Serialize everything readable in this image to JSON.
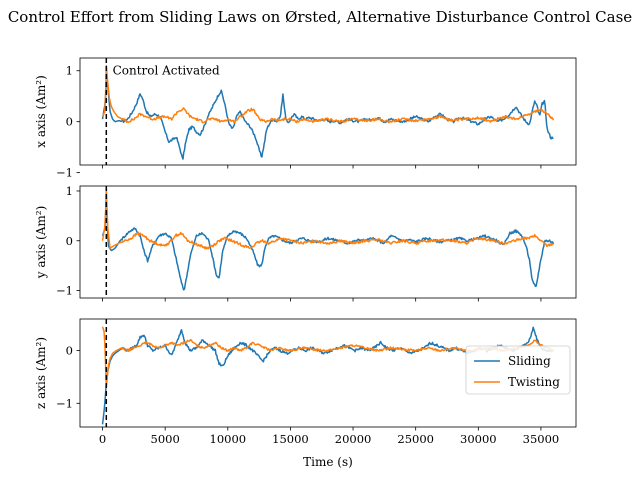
{
  "figure": {
    "title": "Control Effort from Sliding Laws on Ørsted, Alternative Disturbance Control Case",
    "xlabel": "Time (s)",
    "annotation": "Control Activated"
  },
  "chart_data": [
    {
      "type": "line",
      "title": "Control Effort from Sliding Laws on Ørsted, Alternative Disturbance Control Case",
      "xlabel": "",
      "ylabel": "x axis (Am²)",
      "xlim": [
        -1800,
        37800
      ],
      "ylim": [
        -0.85,
        1.25
      ],
      "yticks": [
        -1,
        0,
        1
      ],
      "xticks": [
        0,
        5000,
        10000,
        15000,
        20000,
        25000,
        30000,
        35000
      ],
      "grid": false,
      "vline": {
        "x": 300,
        "style": "dashed",
        "color": "#000000"
      },
      "annotation": {
        "text": "Control Activated",
        "x": 800,
        "y": 1.0
      },
      "series": [
        {
          "name": "Sliding",
          "color": "#1f77b4",
          "x": [
            0,
            200,
            350,
            450,
            600,
            800,
            1000,
            1300,
            1600,
            2000,
            2400,
            2700,
            3000,
            3200,
            3500,
            3800,
            4200,
            4600,
            5000,
            5300,
            5600,
            5900,
            6200,
            6400,
            6600,
            6900,
            7200,
            7500,
            7800,
            8100,
            8400,
            8700,
            9000,
            9300,
            9500,
            9800,
            10100,
            10400,
            10700,
            11000,
            11400,
            11800,
            12200,
            12500,
            12700,
            12900,
            13100,
            13300,
            13600,
            13900,
            14200,
            14400,
            14600,
            14800,
            15000,
            15300,
            15600,
            15900,
            16200,
            16500,
            16900,
            17300,
            17700,
            18100,
            18500,
            19000,
            19500,
            20000,
            20500,
            21000,
            21500,
            22000,
            22500,
            23000,
            23500,
            24000,
            24500,
            25000,
            25500,
            26000,
            26500,
            27000,
            27500,
            28000,
            28500,
            29000,
            29500,
            30000,
            30500,
            31000,
            31500,
            32000,
            32500,
            33000,
            33500,
            33800,
            34100,
            34300,
            34500,
            34700,
            34900,
            35100,
            35300,
            35500,
            35800,
            36000
          ],
          "values": [
            0.05,
            0.35,
            0.9,
            0.6,
            0.2,
            0.05,
            0.0,
            0.02,
            0.0,
            0.05,
            0.2,
            0.35,
            0.55,
            0.45,
            0.2,
            0.1,
            0.15,
            0.1,
            -0.2,
            -0.4,
            -0.35,
            -0.3,
            -0.55,
            -0.75,
            -0.45,
            -0.15,
            -0.1,
            -0.2,
            -0.25,
            -0.1,
            0.1,
            0.25,
            0.4,
            0.55,
            0.6,
            0.3,
            -0.05,
            -0.15,
            0.1,
            0.2,
            0.0,
            -0.1,
            -0.3,
            -0.55,
            -0.7,
            -0.45,
            -0.15,
            -0.05,
            0.05,
            0.0,
            0.1,
            0.55,
            0.1,
            -0.05,
            0.05,
            0.15,
            0.05,
            0.1,
            0.05,
            0.08,
            0.05,
            0.02,
            0.05,
            0.0,
            0.02,
            -0.02,
            0.05,
            0.02,
            0.0,
            0.05,
            0.03,
            0.08,
            0.0,
            0.05,
            0.02,
            0.0,
            0.05,
            0.1,
            0.05,
            0.0,
            0.1,
            0.15,
            0.05,
            0.0,
            0.08,
            0.05,
            0.0,
            -0.05,
            0.05,
            0.1,
            0.0,
            0.05,
            0.15,
            0.3,
            0.1,
            0.0,
            -0.05,
            0.2,
            0.4,
            0.3,
            0.1,
            0.35,
            0.4,
            -0.15,
            -0.32,
            -0.3
          ],
          "noise": 0.025
        },
        {
          "name": "Twisting",
          "color": "#ff7f0e",
          "x": [
            0,
            200,
            300,
            400,
            550,
            700,
            900,
            1200,
            1600,
            2000,
            2500,
            3000,
            3500,
            4000,
            4500,
            5000,
            5500,
            6000,
            6500,
            7000,
            7500,
            8000,
            8500,
            9000,
            9500,
            10000,
            10500,
            11000,
            11500,
            12000,
            12500,
            13000,
            13500,
            14000,
            14500,
            15000,
            15500,
            16000,
            16500,
            17000,
            17500,
            18000,
            19000,
            20000,
            21000,
            22000,
            23000,
            24000,
            25000,
            26000,
            27000,
            28000,
            29000,
            30000,
            31000,
            32000,
            33000,
            34000,
            34500,
            35000,
            35500,
            36000
          ],
          "values": [
            0.1,
            0.2,
            1.1,
            0.8,
            0.45,
            0.3,
            0.2,
            0.1,
            0.05,
            0.0,
            0.05,
            0.15,
            0.1,
            0.05,
            0.08,
            0.1,
            0.05,
            0.2,
            0.25,
            0.1,
            0.05,
            0.0,
            0.05,
            0.05,
            0.0,
            0.05,
            0.0,
            0.1,
            0.2,
            0.25,
            0.05,
            0.0,
            0.05,
            0.02,
            0.05,
            0.05,
            0.0,
            0.05,
            0.02,
            0.0,
            0.03,
            0.05,
            0.0,
            0.05,
            0.02,
            0.05,
            0.0,
            0.05,
            0.02,
            0.05,
            0.1,
            0.02,
            0.05,
            0.08,
            0.0,
            0.1,
            0.05,
            0.15,
            0.2,
            0.25,
            0.15,
            0.05
          ],
          "noise": 0.025
        }
      ]
    },
    {
      "type": "line",
      "xlabel": "",
      "ylabel": "y axis (Am²)",
      "xlim": [
        -1800,
        37800
      ],
      "ylim": [
        -1.15,
        1.1
      ],
      "yticks": [
        -1,
        0,
        1
      ],
      "xticks": [
        0,
        5000,
        10000,
        15000,
        20000,
        25000,
        30000,
        35000
      ],
      "grid": false,
      "vline": {
        "x": 300,
        "style": "dashed",
        "color": "#000000"
      },
      "series": [
        {
          "name": "Sliding",
          "color": "#1f77b4",
          "x": [
            0,
            200,
            300,
            450,
            700,
            1000,
            1400,
            1800,
            2200,
            2600,
            3000,
            3300,
            3600,
            4000,
            4500,
            5000,
            5500,
            6000,
            6300,
            6500,
            6700,
            7000,
            7500,
            8000,
            8500,
            8800,
            9100,
            9300,
            9600,
            10000,
            10500,
            11000,
            11500,
            12000,
            12400,
            12700,
            13000,
            13300,
            13700,
            14100,
            14500,
            15000,
            15500,
            16000,
            16500,
            17000,
            17500,
            18000,
            18500,
            19000,
            19500,
            20000,
            20500,
            21000,
            21500,
            22000,
            22500,
            23000,
            23500,
            24000,
            24500,
            25000,
            25500,
            26000,
            26500,
            27000,
            27500,
            28000,
            28500,
            29000,
            29500,
            30000,
            30500,
            31000,
            31500,
            32000,
            32500,
            33000,
            33500,
            33800,
            34100,
            34300,
            34600,
            34900,
            35300,
            35700,
            36000
          ],
          "values": [
            0.1,
            0.25,
            0.9,
            -0.1,
            -0.2,
            -0.15,
            0.0,
            0.1,
            0.2,
            0.25,
            0.1,
            -0.2,
            -0.4,
            -0.1,
            0.1,
            0.15,
            0.05,
            -0.5,
            -0.85,
            -1.0,
            -0.75,
            -0.3,
            0.1,
            0.15,
            0.0,
            -0.35,
            -0.7,
            -0.75,
            -0.2,
            0.1,
            0.2,
            0.15,
            0.05,
            -0.2,
            -0.5,
            -0.5,
            -0.1,
            0.05,
            0.1,
            0.05,
            0.0,
            -0.05,
            0.02,
            0.05,
            0.0,
            -0.02,
            0.0,
            0.05,
            0.02,
            0.0,
            -0.05,
            -0.02,
            0.02,
            0.0,
            0.05,
            0.0,
            -0.05,
            0.1,
            0.05,
            0.0,
            0.02,
            -0.02,
            0.02,
            0.05,
            0.0,
            -0.02,
            0.0,
            0.02,
            0.05,
            0.0,
            0.02,
            0.05,
            0.1,
            0.05,
            0.0,
            -0.1,
            0.15,
            0.2,
            0.1,
            -0.1,
            -0.4,
            -0.8,
            -0.95,
            -0.5,
            0.0,
            0.0,
            -0.05
          ],
          "noise": 0.025
        },
        {
          "name": "Twisting",
          "color": "#ff7f0e",
          "x": [
            0,
            200,
            300,
            400,
            600,
            900,
            1300,
            1800,
            2300,
            2800,
            3300,
            3800,
            4300,
            4800,
            5300,
            5800,
            6300,
            6800,
            7300,
            7800,
            8300,
            8800,
            9300,
            9800,
            10300,
            10800,
            11300,
            11800,
            12300,
            12800,
            13300,
            13800,
            14300,
            15000,
            16000,
            17000,
            18000,
            19000,
            20000,
            21000,
            22000,
            23000,
            24000,
            25000,
            26000,
            27000,
            28000,
            29000,
            30000,
            31000,
            32000,
            33000,
            33500,
            34000,
            34500,
            35000,
            35500,
            36000
          ],
          "values": [
            0.0,
            0.3,
            1.05,
            0.3,
            -0.15,
            -0.1,
            -0.05,
            0.0,
            0.05,
            0.15,
            0.1,
            0.0,
            -0.05,
            -0.1,
            -0.05,
            0.1,
            0.15,
            0.0,
            -0.05,
            -0.1,
            -0.15,
            -0.1,
            0.0,
            0.05,
            0.0,
            -0.05,
            -0.1,
            -0.15,
            -0.05,
            0.0,
            -0.05,
            0.0,
            0.05,
            0.0,
            -0.05,
            0.0,
            -0.05,
            0.0,
            -0.05,
            0.0,
            0.02,
            -0.05,
            0.0,
            -0.05,
            0.0,
            0.02,
            0.0,
            -0.05,
            0.05,
            0.02,
            -0.05,
            0.0,
            0.05,
            0.05,
            0.1,
            0.0,
            -0.1,
            -0.05
          ],
          "noise": 0.025
        }
      ]
    },
    {
      "type": "line",
      "xlabel": "Time (s)",
      "ylabel": "z axis (Am²)",
      "xlim": [
        -1800,
        37800
      ],
      "ylim": [
        -1.45,
        0.6
      ],
      "yticks": [
        -1,
        0
      ],
      "xticks": [
        0,
        5000,
        10000,
        15000,
        20000,
        25000,
        30000,
        35000
      ],
      "xticklabels": [
        "0",
        "5000",
        "10000",
        "15000",
        "20000",
        "25000",
        "30000",
        "35000"
      ],
      "grid": false,
      "vline": {
        "x": 300,
        "style": "dashed",
        "color": "#000000"
      },
      "legend": {
        "placement": "center-right",
        "entries": [
          "Sliding",
          "Twisting"
        ]
      },
      "series": [
        {
          "name": "Sliding",
          "color": "#1f77b4",
          "x": [
            0,
            150,
            300,
            450,
            600,
            800,
            1000,
            1300,
            1600,
            2000,
            2400,
            2700,
            3000,
            3300,
            3600,
            4000,
            4500,
            5000,
            5500,
            6000,
            6300,
            6600,
            7000,
            7500,
            8000,
            8500,
            9000,
            9300,
            9600,
            10000,
            10500,
            11000,
            11500,
            12000,
            12400,
            12800,
            13100,
            13400,
            13800,
            14200,
            14700,
            15200,
            15700,
            16200,
            16700,
            17200,
            17700,
            18200,
            18700,
            19200,
            19700,
            20200,
            20700,
            21200,
            21700,
            22200,
            22700,
            23200,
            23700,
            24200,
            24700,
            25200,
            25700,
            26200,
            26700,
            27200,
            27700,
            28200,
            28700,
            29200,
            29700,
            30200,
            30700,
            31200,
            31700,
            32200,
            32700,
            33200,
            33700,
            34100,
            34400,
            34700,
            35000,
            35400,
            35800,
            36000
          ],
          "values": [
            -1.4,
            -1.1,
            -0.6,
            -0.35,
            -0.2,
            -0.1,
            -0.05,
            0.0,
            0.05,
            0.0,
            0.05,
            0.1,
            0.25,
            0.3,
            0.1,
            0.0,
            0.05,
            0.1,
            -0.1,
            0.2,
            0.4,
            0.15,
            0.0,
            0.05,
            0.2,
            0.1,
            0.0,
            -0.25,
            -0.3,
            -0.1,
            0.05,
            0.15,
            0.1,
            0.0,
            -0.1,
            -0.2,
            -0.1,
            0.0,
            0.05,
            0.0,
            -0.05,
            0.0,
            0.05,
            0.0,
            0.05,
            0.0,
            -0.05,
            0.0,
            0.05,
            0.1,
            0.05,
            0.0,
            0.05,
            0.0,
            0.05,
            0.15,
            0.05,
            0.0,
            0.05,
            0.0,
            -0.05,
            0.0,
            0.05,
            0.15,
            0.1,
            0.05,
            0.0,
            0.05,
            0.0,
            -0.05,
            0.0,
            0.05,
            0.0,
            0.05,
            0.1,
            0.05,
            0.0,
            0.05,
            0.1,
            0.2,
            0.45,
            0.2,
            0.05,
            0.0,
            0.0,
            0.0
          ],
          "noise": 0.025
        },
        {
          "name": "Twisting",
          "color": "#ff7f0e",
          "x": [
            0,
            150,
            300,
            450,
            600,
            800,
            1100,
            1500,
            2000,
            2500,
            3000,
            3500,
            4000,
            4500,
            5000,
            5500,
            6000,
            6500,
            7000,
            7500,
            8000,
            8500,
            9000,
            9500,
            10000,
            10500,
            11000,
            11500,
            12000,
            12500,
            13000,
            13500,
            14000,
            15000,
            16000,
            17000,
            18000,
            19000,
            20000,
            21000,
            22000,
            23000,
            24000,
            25000,
            26000,
            27000,
            28000,
            29000,
            30000,
            31000,
            32000,
            33000,
            34000,
            34500,
            35000,
            35500,
            36000
          ],
          "values": [
            0.45,
            0.35,
            -0.7,
            -0.3,
            -0.15,
            -0.05,
            0.0,
            0.05,
            0.0,
            0.05,
            0.1,
            0.15,
            0.1,
            0.05,
            0.1,
            0.15,
            0.1,
            0.15,
            0.2,
            0.1,
            0.05,
            0.1,
            0.15,
            0.05,
            0.0,
            0.05,
            0.0,
            0.05,
            0.15,
            0.1,
            0.05,
            0.0,
            0.05,
            0.0,
            0.05,
            0.02,
            0.0,
            0.05,
            0.1,
            0.05,
            0.0,
            0.05,
            0.02,
            0.0,
            0.05,
            0.0,
            0.05,
            0.0,
            0.02,
            0.05,
            0.0,
            0.05,
            0.1,
            0.2,
            0.1,
            0.05,
            0.0
          ],
          "noise": 0.02
        }
      ]
    }
  ]
}
